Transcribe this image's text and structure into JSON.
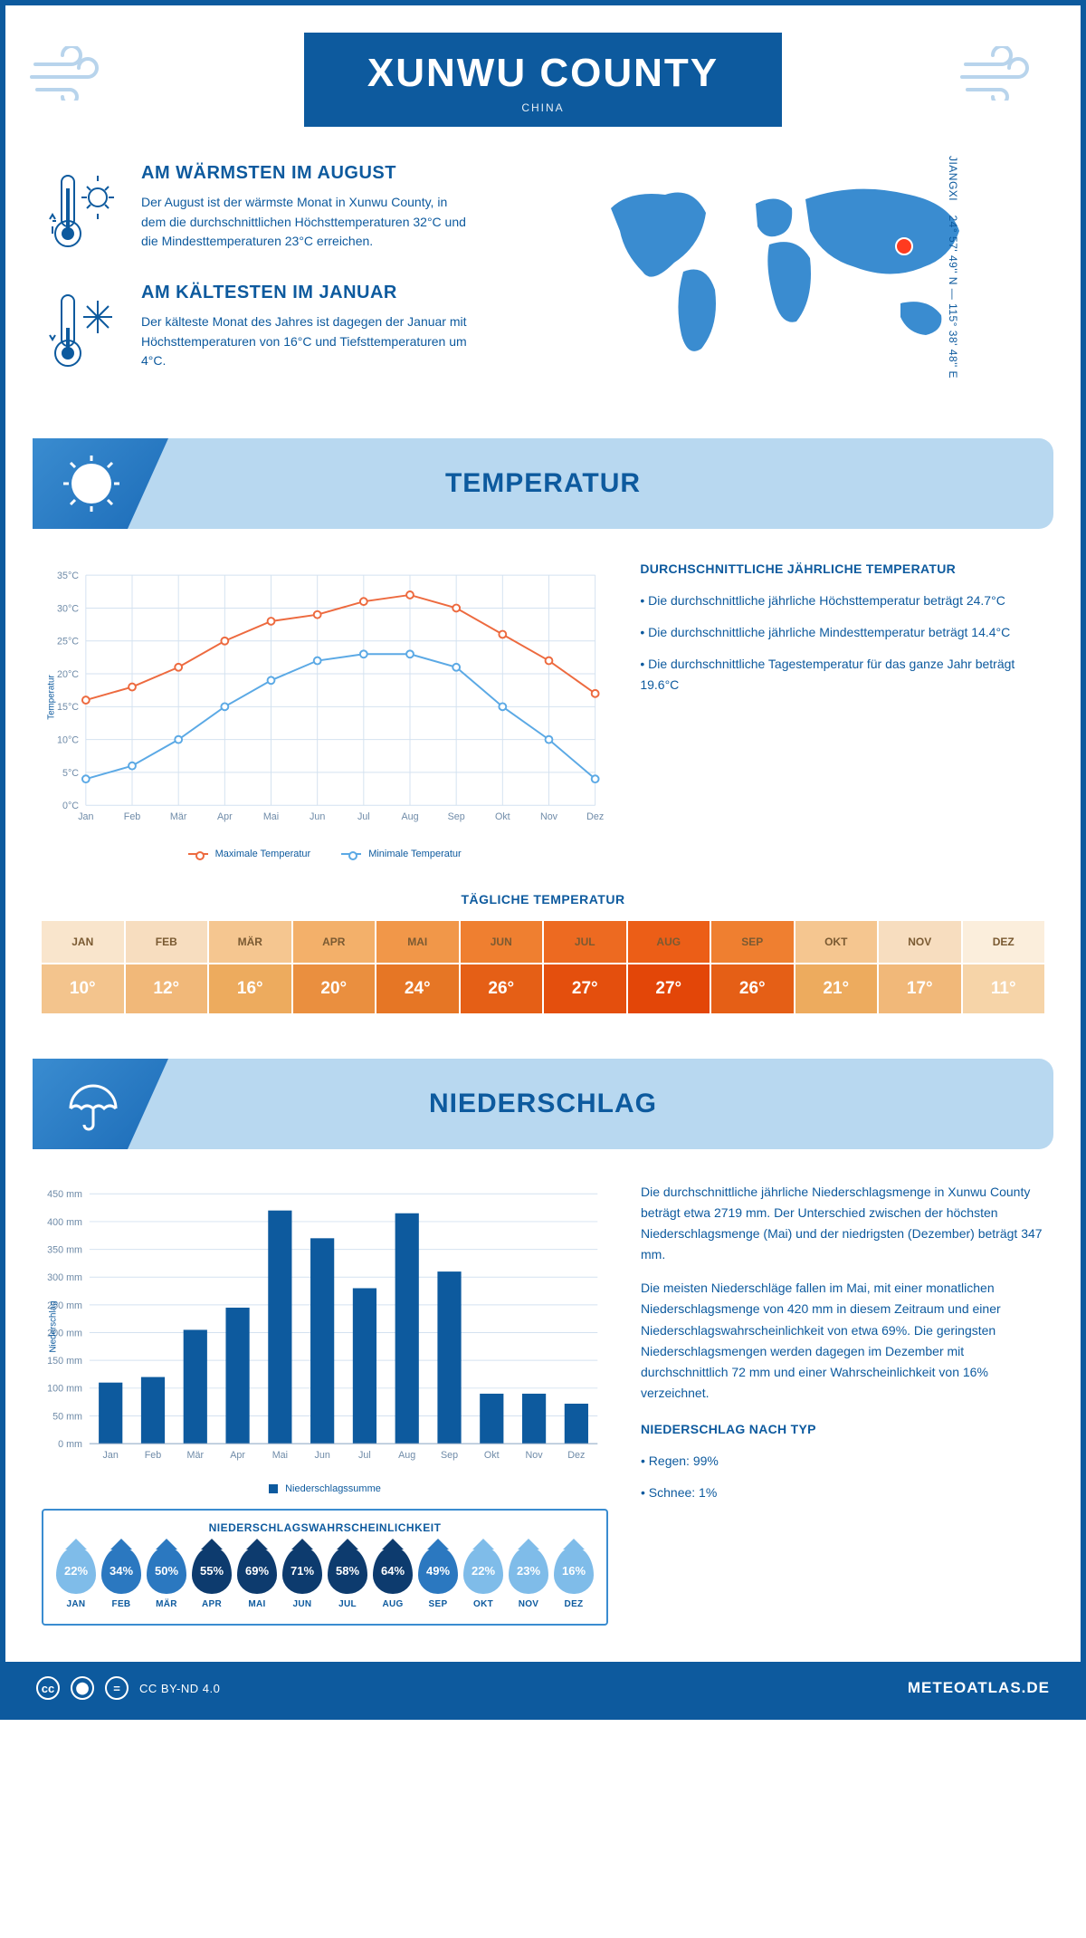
{
  "header": {
    "title": "XUNWU COUNTY",
    "country": "CHINA"
  },
  "info": {
    "warm": {
      "heading": "AM WÄRMSTEN IM AUGUST",
      "text": "Der August ist der wärmste Monat in Xunwu County, in dem die durchschnittlichen Höchsttemperaturen 32°C und die Mindesttemperaturen 23°C erreichen."
    },
    "cold": {
      "heading": "AM KÄLTESTEN IM JANUAR",
      "text": "Der kälteste Monat des Jahres ist dagegen der Januar mit Höchsttemperaturen von 16°C und Tiefsttemperaturen um 4°C."
    }
  },
  "map": {
    "coords": "24° 57' 49'' N — 115° 38' 48'' E",
    "region": "JIANGXI"
  },
  "temperature": {
    "section_title": "TEMPERATUR",
    "side": {
      "heading": "DURCHSCHNITTLICHE JÄHRLICHE TEMPERATUR",
      "b1": "• Die durchschnittliche jährliche Höchsttemperatur beträgt 24.7°C",
      "b2": "• Die durchschnittliche jährliche Mindesttemperatur beträgt 14.4°C",
      "b3": "• Die durchschnittliche Tagestemperatur für das ganze Jahr beträgt 19.6°C"
    },
    "chart": {
      "type": "line",
      "months": [
        "Jan",
        "Feb",
        "Mär",
        "Apr",
        "Mai",
        "Jun",
        "Jul",
        "Aug",
        "Sep",
        "Okt",
        "Nov",
        "Dez"
      ],
      "max": [
        16,
        18,
        21,
        25,
        28,
        29,
        31,
        32,
        30,
        26,
        22,
        17
      ],
      "min": [
        4,
        6,
        10,
        15,
        19,
        22,
        23,
        23,
        21,
        15,
        10,
        4
      ],
      "max_color": "#ed6a3f",
      "min_color": "#5ba9e5",
      "ylim": [
        0,
        35
      ],
      "ytick_step": 5,
      "ylabel": "Temperatur",
      "grid_color": "#d4e2f0",
      "bg": "#ffffff",
      "legend": {
        "max": "Maximale Temperatur",
        "min": "Minimale Temperatur"
      }
    },
    "daily": {
      "title": "TÄGLICHE TEMPERATUR",
      "months": [
        "JAN",
        "FEB",
        "MÄR",
        "APR",
        "MAI",
        "JUN",
        "JUL",
        "AUG",
        "SEP",
        "OKT",
        "NOV",
        "DEZ"
      ],
      "values": [
        "10°",
        "12°",
        "16°",
        "20°",
        "24°",
        "26°",
        "27°",
        "27°",
        "26°",
        "21°",
        "17°",
        "11°"
      ],
      "month_colors": [
        "#f9e5cc",
        "#f7ddbf",
        "#f5c690",
        "#f3b06a",
        "#f19749",
        "#ef7f30",
        "#ed6a21",
        "#ec5e17",
        "#ef7f30",
        "#f5c690",
        "#f7ddbf",
        "#fbeedc"
      ],
      "value_colors": [
        "#f3c48d",
        "#f1b879",
        "#edab5e",
        "#ea8f3f",
        "#e67625",
        "#e55f16",
        "#e44f0d",
        "#e34608",
        "#e55f16",
        "#edab5e",
        "#f1b879",
        "#f6d4a8"
      ]
    }
  },
  "precip": {
    "section_title": "NIEDERSCHLAG",
    "chart": {
      "type": "bar",
      "months": [
        "Jan",
        "Feb",
        "Mär",
        "Apr",
        "Mai",
        "Jun",
        "Jul",
        "Aug",
        "Sep",
        "Okt",
        "Nov",
        "Dez"
      ],
      "values": [
        110,
        120,
        205,
        245,
        420,
        370,
        280,
        415,
        310,
        90,
        90,
        72
      ],
      "bar_color": "#0d5a9e",
      "ylim": [
        0,
        450
      ],
      "ytick_step": 50,
      "ylabel": "Niederschlag",
      "legend": "Niederschlagssumme"
    },
    "text1": "Die durchschnittliche jährliche Niederschlagsmenge in Xunwu County beträgt etwa 2719 mm. Der Unterschied zwischen der höchsten Niederschlagsmenge (Mai) und der niedrigsten (Dezember) beträgt 347 mm.",
    "text2": "Die meisten Niederschläge fallen im Mai, mit einer monatlichen Niederschlagsmenge von 420 mm in diesem Zeitraum und einer Niederschlagswahrscheinlichkeit von etwa 69%. Die geringsten Niederschlagsmengen werden dagegen im Dezember mit durchschnittlich 72 mm und einer Wahrscheinlichkeit von 16% verzeichnet.",
    "prob": {
      "title": "NIEDERSCHLAGSWAHRSCHEINLICHKEIT",
      "months": [
        "JAN",
        "FEB",
        "MÄR",
        "APR",
        "MAI",
        "JUN",
        "JUL",
        "AUG",
        "SEP",
        "OKT",
        "NOV",
        "DEZ"
      ],
      "values": [
        "22%",
        "34%",
        "50%",
        "55%",
        "69%",
        "71%",
        "58%",
        "64%",
        "49%",
        "22%",
        "23%",
        "16%"
      ],
      "nums": [
        22,
        34,
        50,
        55,
        69,
        71,
        58,
        64,
        49,
        22,
        23,
        16
      ],
      "scale": {
        "light": "#7fbce9",
        "mid": "#2b78c0",
        "dark": "#0d3b6e"
      }
    },
    "type": {
      "heading": "NIEDERSCHLAG NACH TYP",
      "rain": "• Regen: 99%",
      "snow": "• Schnee: 1%"
    }
  },
  "footer": {
    "license": "CC BY-ND 4.0",
    "site": "METEOATLAS.DE"
  }
}
